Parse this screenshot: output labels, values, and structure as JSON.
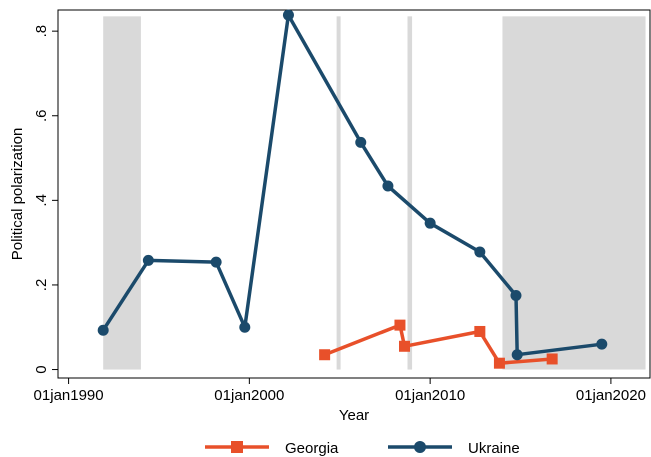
{
  "chart_data": {
    "type": "line",
    "xlabel": "Year",
    "ylabel": "Political polarization",
    "x_type": "date",
    "xlim": [
      "1989-06-01",
      "2022-03-01"
    ],
    "ylim": [
      -0.02,
      0.85
    ],
    "x_ticks": [
      {
        "date": "1990-01-01",
        "label": "01jan1990"
      },
      {
        "date": "2000-01-01",
        "label": "01jan2000"
      },
      {
        "date": "2010-01-01",
        "label": "01jan2010"
      },
      {
        "date": "2020-01-01",
        "label": "01jan2020"
      }
    ],
    "y_ticks": [
      {
        "value": 0,
        "label": "0"
      },
      {
        "value": 0.2,
        "label": ".2"
      },
      {
        "value": 0.4,
        "label": ".4"
      },
      {
        "value": 0.6,
        "label": ".6"
      },
      {
        "value": 0.8,
        "label": ".8"
      }
    ],
    "grid": false,
    "legend_position": "bottom",
    "shaded_periods": [
      {
        "start": "1991-12-01",
        "end": "1994-01-01"
      },
      {
        "start": "2004-11-01",
        "end": "2005-01-15"
      },
      {
        "start": "2008-10-01",
        "end": "2009-01-01"
      },
      {
        "start": "2014-01-01",
        "end": "2021-12-01"
      }
    ],
    "series": [
      {
        "name": "Georgia",
        "color": "#e8502a",
        "marker": "square",
        "points": [
          {
            "x": "2004-03-01",
            "y": 0.035
          },
          {
            "x": "2008-05-01",
            "y": 0.105
          },
          {
            "x": "2008-08-01",
            "y": 0.055
          },
          {
            "x": "2012-10-01",
            "y": 0.09
          },
          {
            "x": "2013-11-01",
            "y": 0.015
          },
          {
            "x": "2016-10-01",
            "y": 0.025
          }
        ]
      },
      {
        "name": "Ukraine",
        "color": "#1b4a6b",
        "marker": "circle",
        "points": [
          {
            "x": "1991-12-01",
            "y": 0.093
          },
          {
            "x": "1994-06-01",
            "y": 0.258
          },
          {
            "x": "1998-03-01",
            "y": 0.254
          },
          {
            "x": "1999-10-01",
            "y": 0.1
          },
          {
            "x": "2002-03-01",
            "y": 0.838
          },
          {
            "x": "2006-03-01",
            "y": 0.537
          },
          {
            "x": "2007-09-01",
            "y": 0.434
          },
          {
            "x": "2010-01-01",
            "y": 0.346
          },
          {
            "x": "2012-10-01",
            "y": 0.278
          },
          {
            "x": "2014-10-01",
            "y": 0.175
          },
          {
            "x": "2014-10-26",
            "y": 0.035
          },
          {
            "x": "2019-07-01",
            "y": 0.06
          }
        ]
      }
    ]
  }
}
